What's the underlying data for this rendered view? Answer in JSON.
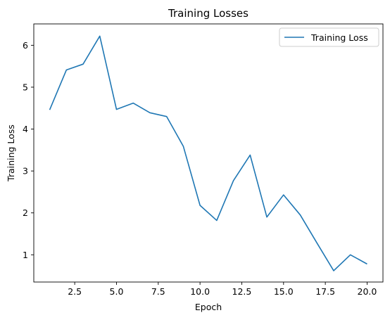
{
  "chart_data": {
    "type": "line",
    "title": "Training Losses",
    "xlabel": "Epoch",
    "ylabel": "Training Loss",
    "xlim": [
      0.05,
      20.95
    ],
    "ylim": [
      0.35,
      6.51
    ],
    "x_ticks": [
      2.5,
      5.0,
      7.5,
      10.0,
      12.5,
      15.0,
      17.5,
      20.0
    ],
    "x_tick_labels": [
      "2.5",
      "5.0",
      "7.5",
      "10.0",
      "12.5",
      "15.0",
      "17.5",
      "20.0"
    ],
    "y_ticks": [
      1,
      2,
      3,
      4,
      5,
      6
    ],
    "y_tick_labels": [
      "1",
      "2",
      "3",
      "4",
      "5",
      "6"
    ],
    "grid": false,
    "legend_position": "top-right",
    "series": [
      {
        "name": "Training Loss",
        "color": "#1f77b4",
        "x": [
          1,
          2,
          3,
          4,
          5,
          6,
          7,
          8,
          9,
          10,
          11,
          12,
          13,
          14,
          15,
          16,
          17,
          18,
          19,
          20
        ],
        "y": [
          4.46,
          5.41,
          5.55,
          6.22,
          4.47,
          4.62,
          4.39,
          4.3,
          3.59,
          2.18,
          1.82,
          2.77,
          3.38,
          1.9,
          2.43,
          1.95,
          1.28,
          0.62,
          1.0,
          0.78
        ]
      }
    ]
  }
}
